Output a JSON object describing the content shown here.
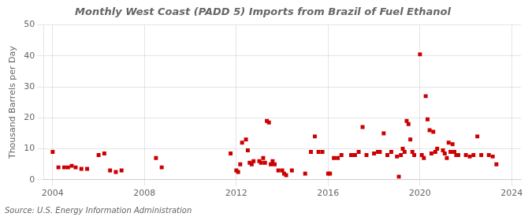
{
  "chart_data": {
    "type": "scatter",
    "title": "Monthly West Coast (PADD 5) Imports from Brazil of Fuel Ethanol",
    "ylabel": "Thousand Barrels per Day",
    "source": "Source: U.S. Energy Information Administration",
    "color": "#cc0000",
    "marker": "square",
    "grid": true,
    "xlim": [
      2003.6,
      2024.4
    ],
    "xticks": [
      2004,
      2008,
      2012,
      2016,
      2020,
      2024
    ],
    "ylim": [
      0,
      50
    ],
    "yticks": [
      0,
      10,
      20,
      30,
      40,
      50
    ],
    "x": [
      2004.0,
      2004.25,
      2004.5,
      2004.67,
      2004.83,
      2005.0,
      2005.25,
      2005.5,
      2006.0,
      2006.25,
      2006.5,
      2006.75,
      2007.0,
      2008.5,
      2008.75,
      2011.75,
      2012.0,
      2012.08,
      2012.17,
      2012.25,
      2012.42,
      2012.5,
      2012.58,
      2012.67,
      2012.75,
      2013.0,
      2013.08,
      2013.17,
      2013.25,
      2013.33,
      2013.42,
      2013.5,
      2013.58,
      2013.67,
      2013.83,
      2014.0,
      2014.08,
      2014.17,
      2014.42,
      2015.0,
      2015.25,
      2015.42,
      2015.58,
      2015.75,
      2016.0,
      2016.08,
      2016.25,
      2016.42,
      2016.58,
      2017.0,
      2017.17,
      2017.33,
      2017.5,
      2017.67,
      2018.0,
      2018.17,
      2018.25,
      2018.42,
      2018.58,
      2018.75,
      2019.0,
      2019.08,
      2019.17,
      2019.25,
      2019.33,
      2019.42,
      2019.5,
      2019.58,
      2019.67,
      2019.75,
      2020.0,
      2020.08,
      2020.17,
      2020.25,
      2020.33,
      2020.42,
      2020.5,
      2020.58,
      2020.67,
      2020.75,
      2021.0,
      2021.08,
      2021.17,
      2021.25,
      2021.33,
      2021.42,
      2021.5,
      2021.58,
      2021.67,
      2022.0,
      2022.17,
      2022.33,
      2022.5,
      2022.67,
      2023.0,
      2023.17,
      2023.33
    ],
    "values": [
      9.0,
      4.0,
      4.0,
      4.0,
      4.5,
      4.0,
      3.5,
      3.5,
      8.0,
      8.5,
      3.0,
      2.5,
      3.0,
      7.0,
      4.0,
      8.5,
      3.0,
      2.5,
      5.0,
      12.0,
      13.0,
      9.5,
      5.5,
      5.0,
      6.0,
      6.0,
      5.5,
      7.0,
      5.5,
      19.0,
      18.5,
      5.0,
      6.0,
      5.0,
      3.0,
      3.0,
      2.0,
      1.5,
      3.0,
      2.0,
      9.0,
      14.0,
      9.0,
      9.0,
      2.0,
      2.0,
      7.0,
      7.0,
      8.0,
      8.0,
      8.0,
      9.0,
      17.0,
      8.0,
      8.5,
      9.0,
      9.0,
      15.0,
      8.0,
      9.0,
      7.5,
      1.0,
      8.0,
      10.0,
      9.0,
      19.0,
      18.0,
      13.0,
      9.0,
      8.0,
      40.5,
      8.0,
      7.0,
      27.0,
      19.5,
      16.0,
      8.5,
      15.5,
      9.0,
      10.0,
      9.5,
      8.5,
      7.0,
      12.0,
      9.0,
      11.5,
      9.0,
      8.0,
      8.0,
      8.0,
      7.5,
      8.0,
      14.0,
      8.0,
      8.0,
      7.5,
      5.0
    ]
  }
}
